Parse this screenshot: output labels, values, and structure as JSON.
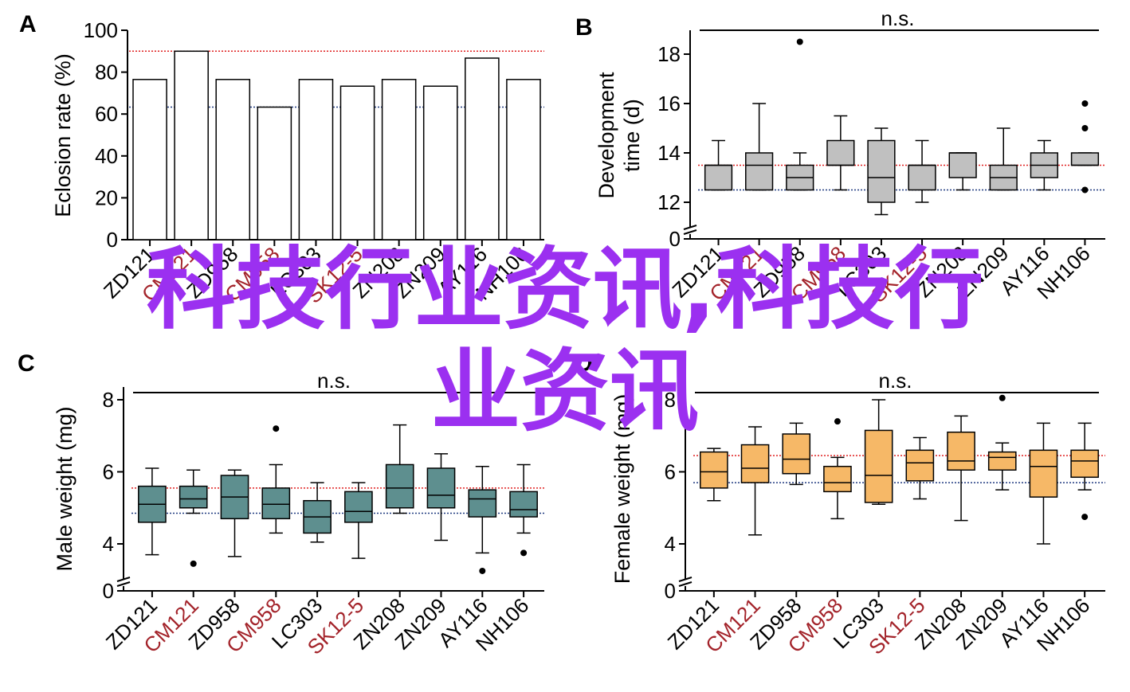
{
  "watermark": {
    "line1": "科技行业资讯,科技行",
    "line2": "业资讯"
  },
  "colors": {
    "red_ref": "#e02020",
    "blue_ref": "#203a80",
    "highlight": "#a3232a",
    "axis": "#000000",
    "bar_fill": "#ffffff",
    "box_B": "#c0c0c0",
    "box_C": "#5e8f8f",
    "box_D": "#f6b867"
  },
  "chart_data": [
    {
      "panel": "A",
      "type": "bar",
      "ylabel": "Eclosion rate (%)",
      "ylim": [
        0,
        100
      ],
      "yticks": [
        0,
        20,
        40,
        60,
        80,
        100
      ],
      "categories": [
        "ZD121",
        "CM121",
        "ZD958",
        "CM958",
        "LC303",
        "SK12-5",
        "ZN208",
        "ZN209",
        "AY116",
        "NH106"
      ],
      "highlighted": [
        "CM121",
        "CM958",
        "SK12-5"
      ],
      "values": [
        76.5,
        90,
        76.5,
        63.3,
        76.5,
        73.3,
        76.5,
        73.3,
        86.7,
        76.5
      ],
      "ref_red": 90,
      "ref_blue": 63.3
    },
    {
      "panel": "B",
      "type": "box",
      "ylabel": "Development time (d)",
      "ylim": [
        11.5,
        19
      ],
      "yticks": [
        12,
        14,
        16,
        18
      ],
      "axis_break_label": "0",
      "significance": "n.s.",
      "categories": [
        "ZD121",
        "CM121",
        "ZD958",
        "CM958",
        "LC303",
        "SK12-5",
        "ZN208",
        "ZN209",
        "AY116",
        "NH106"
      ],
      "highlighted": [
        "CM121",
        "CM958",
        "SK12-5"
      ],
      "boxes": [
        {
          "lo": 12.5,
          "q1": 12.5,
          "med": 13.5,
          "q3": 13.5,
          "hi": 14.5,
          "outliers": []
        },
        {
          "lo": 12.5,
          "q1": 12.5,
          "med": 13.5,
          "q3": 14.0,
          "hi": 16.0,
          "outliers": []
        },
        {
          "lo": 12.5,
          "q1": 12.5,
          "med": 13.0,
          "q3": 13.5,
          "hi": 14.0,
          "outliers": [
            18.5
          ]
        },
        {
          "lo": 12.5,
          "q1": 13.5,
          "med": 13.5,
          "q3": 14.5,
          "hi": 15.5,
          "outliers": []
        },
        {
          "lo": 11.5,
          "q1": 12.0,
          "med": 13.0,
          "q3": 14.5,
          "hi": 15.0,
          "outliers": []
        },
        {
          "lo": 12.0,
          "q1": 12.5,
          "med": 13.5,
          "q3": 13.5,
          "hi": 14.5,
          "outliers": []
        },
        {
          "lo": 12.5,
          "q1": 13.0,
          "med": 14.0,
          "q3": 14.0,
          "hi": 14.0,
          "outliers": []
        },
        {
          "lo": 12.5,
          "q1": 12.5,
          "med": 13.0,
          "q3": 13.5,
          "hi": 15.0,
          "outliers": []
        },
        {
          "lo": 12.5,
          "q1": 13.0,
          "med": 13.5,
          "q3": 14.0,
          "hi": 14.5,
          "outliers": []
        },
        {
          "lo": 13.5,
          "q1": 13.5,
          "med": 13.5,
          "q3": 14.0,
          "hi": 14.0,
          "outliers": [
            16.0,
            15.0,
            12.5
          ]
        }
      ],
      "ref_red": 13.5,
      "ref_blue": 12.5
    },
    {
      "panel": "C",
      "type": "box",
      "ylabel": "Male weight (mg)",
      "ylim": [
        3.3,
        8.5
      ],
      "yticks": [
        4,
        6,
        8
      ],
      "axis_break_label": "0",
      "significance": "n.s.",
      "categories": [
        "ZD121",
        "CM121",
        "ZD958",
        "CM958",
        "LC303",
        "SK12-5",
        "ZN208",
        "ZN209",
        "AY116",
        "NH106"
      ],
      "highlighted": [
        "CM121",
        "CM958",
        "SK12-5"
      ],
      "boxes": [
        {
          "lo": 3.7,
          "q1": 4.6,
          "med": 5.1,
          "q3": 5.6,
          "hi": 6.1,
          "outliers": []
        },
        {
          "lo": 4.85,
          "q1": 5.0,
          "med": 5.25,
          "q3": 5.6,
          "hi": 6.05,
          "outliers": [
            3.45
          ]
        },
        {
          "lo": 3.65,
          "q1": 4.7,
          "med": 5.3,
          "q3": 5.9,
          "hi": 6.05,
          "outliers": []
        },
        {
          "lo": 4.3,
          "q1": 4.7,
          "med": 5.1,
          "q3": 5.55,
          "hi": 6.2,
          "outliers": [
            7.2
          ]
        },
        {
          "lo": 4.05,
          "q1": 4.3,
          "med": 4.75,
          "q3": 5.2,
          "hi": 5.7,
          "outliers": []
        },
        {
          "lo": 3.6,
          "q1": 4.6,
          "med": 4.9,
          "q3": 5.45,
          "hi": 5.7,
          "outliers": []
        },
        {
          "lo": 4.85,
          "q1": 5.0,
          "med": 5.55,
          "q3": 6.2,
          "hi": 7.3,
          "outliers": []
        },
        {
          "lo": 4.1,
          "q1": 5.0,
          "med": 5.35,
          "q3": 6.1,
          "hi": 6.5,
          "outliers": []
        },
        {
          "lo": 3.75,
          "q1": 4.75,
          "med": 5.25,
          "q3": 5.5,
          "hi": 6.15,
          "outliers": [
            3.25
          ]
        },
        {
          "lo": 4.3,
          "q1": 4.75,
          "med": 4.95,
          "q3": 5.45,
          "hi": 6.2,
          "outliers": [
            3.75
          ]
        }
      ],
      "ref_red": 5.55,
      "ref_blue": 4.85
    },
    {
      "panel": "D",
      "type": "box",
      "ylabel": "Female weight (mg)",
      "ylim": [
        3.3,
        8.5
      ],
      "yticks": [
        4,
        6,
        8
      ],
      "axis_break_label": "0",
      "significance": "n.s.",
      "categories": [
        "ZD121",
        "CM121",
        "ZD958",
        "CM958",
        "LC303",
        "SK12-5",
        "ZN208",
        "ZN209",
        "AY116",
        "NH106"
      ],
      "highlighted": [
        "CM121",
        "CM958",
        "SK12-5"
      ],
      "boxes": [
        {
          "lo": 5.2,
          "q1": 5.55,
          "med": 6.0,
          "q3": 6.55,
          "hi": 6.65,
          "outliers": []
        },
        {
          "lo": 4.25,
          "q1": 5.7,
          "med": 6.1,
          "q3": 6.75,
          "hi": 7.25,
          "outliers": []
        },
        {
          "lo": 5.65,
          "q1": 5.95,
          "med": 6.35,
          "q3": 7.05,
          "hi": 7.35,
          "outliers": []
        },
        {
          "lo": 4.7,
          "q1": 5.45,
          "med": 5.7,
          "q3": 6.15,
          "hi": 6.4,
          "outliers": [
            7.4
          ]
        },
        {
          "lo": 5.1,
          "q1": 5.15,
          "med": 5.9,
          "q3": 7.15,
          "hi": 8.0,
          "outliers": []
        },
        {
          "lo": 5.25,
          "q1": 5.75,
          "med": 6.25,
          "q3": 6.6,
          "hi": 6.95,
          "outliers": []
        },
        {
          "lo": 4.65,
          "q1": 6.05,
          "med": 6.3,
          "q3": 7.1,
          "hi": 7.55,
          "outliers": []
        },
        {
          "lo": 5.5,
          "q1": 6.05,
          "med": 6.4,
          "q3": 6.55,
          "hi": 6.8,
          "outliers": [
            8.05
          ]
        },
        {
          "lo": 4.0,
          "q1": 5.3,
          "med": 6.15,
          "q3": 6.6,
          "hi": 7.35,
          "outliers": []
        },
        {
          "lo": 5.5,
          "q1": 5.85,
          "med": 6.3,
          "q3": 6.6,
          "hi": 7.35,
          "outliers": [
            4.75
          ]
        }
      ],
      "ref_red": 6.45,
      "ref_blue": 5.7
    }
  ]
}
